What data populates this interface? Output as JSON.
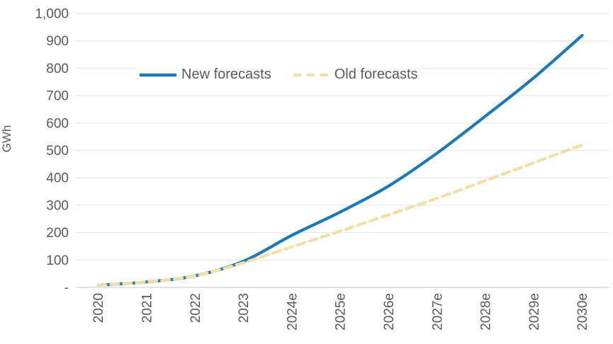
{
  "chart": {
    "y_axis_title": "GWh",
    "legend": {
      "new_label": "New forecasts",
      "old_label": "Old forecasts"
    }
  },
  "chart_data": {
    "type": "line",
    "title": "",
    "xlabel": "",
    "ylabel": "GWh",
    "categories": [
      "2020",
      "2021",
      "2022",
      "2023",
      "2024e",
      "2025e",
      "2026e",
      "2027e",
      "2028e",
      "2029e",
      "2030e"
    ],
    "series": [
      {
        "name": "New forecasts",
        "style": "solid",
        "color": "#1B7AB5",
        "values": [
          8,
          20,
          42,
          95,
          190,
          275,
          370,
          490,
          625,
          765,
          920
        ]
      },
      {
        "name": "Old forecasts",
        "style": "dashed",
        "color": "#F2DFA3",
        "values": [
          8,
          20,
          42,
          90,
          148,
          205,
          265,
          325,
          390,
          455,
          520
        ]
      }
    ],
    "ylim": [
      0,
      1000
    ],
    "ytick_interval": 100,
    "ytick_labels": [
      "-",
      "100",
      "200",
      "300",
      "400",
      "500",
      "600",
      "700",
      "800",
      "900",
      "1,000"
    ],
    "grid": "horizontal",
    "legend_position": "top-left-inside",
    "colors": {
      "axis_text": "#595959",
      "gridline": "#E8E8E8",
      "zero_line": "#D4D4D4",
      "background": "#FFFFFF"
    }
  }
}
